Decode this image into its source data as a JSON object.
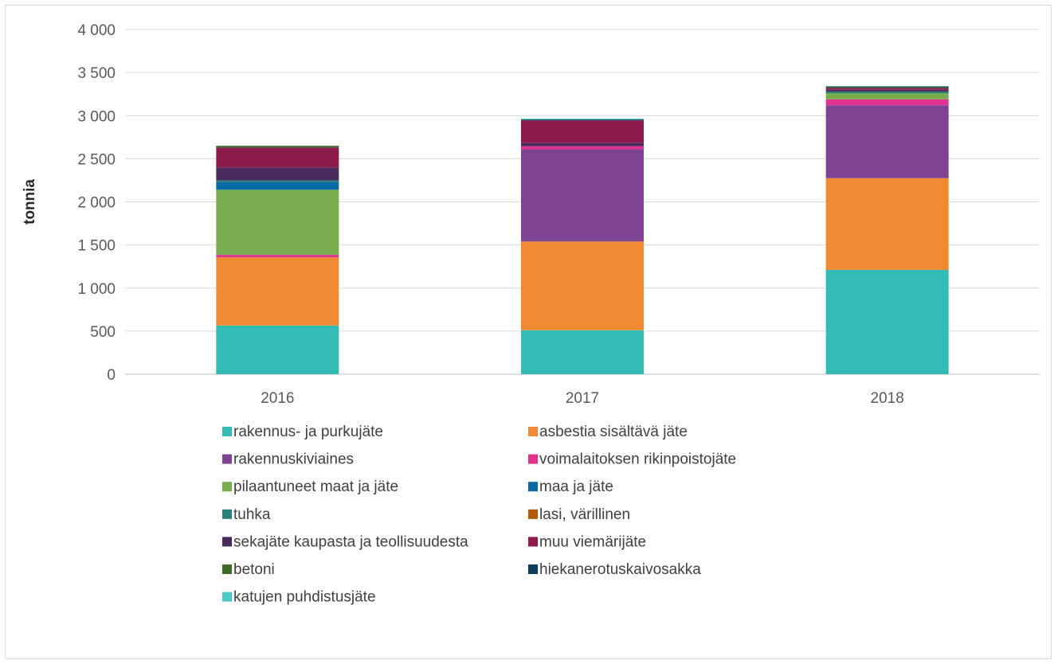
{
  "chart_data": {
    "type": "bar",
    "stacked": true,
    "categories": [
      "2016",
      "2017",
      "2018"
    ],
    "ylabel": "tonnia",
    "xlabel": "",
    "ylim": [
      0,
      4000
    ],
    "yticks": [
      0,
      500,
      1000,
      1500,
      2000,
      2500,
      3000,
      3500,
      4000
    ],
    "ytick_labels": [
      "0",
      "500",
      "1 000",
      "1 500",
      "2 000",
      "2 500",
      "3 000",
      "3 500",
      "4 000"
    ],
    "grid": true,
    "legend_placement": "bottom",
    "series": [
      {
        "name": "rakennus- ja purkujäte",
        "color": "#33bbb5",
        "values": [
          565,
          510,
          1210
        ]
      },
      {
        "name": "asbestia sisältävä jäte",
        "color": "#f08a32",
        "values": [
          790,
          1030,
          1065
        ]
      },
      {
        "name": "rakennuskiviaines",
        "color": "#7f4394",
        "values": [
          0,
          1070,
          845
        ]
      },
      {
        "name": "voimalaitoksen rikinpoistojäte",
        "color": "#e0338f",
        "values": [
          30,
          35,
          70
        ]
      },
      {
        "name": "pilaantuneet maat ja jäte",
        "color": "#77ad4e",
        "values": [
          755,
          0,
          70
        ]
      },
      {
        "name": "maa ja jäte",
        "color": "#0a6aa6",
        "values": [
          90,
          0,
          0
        ]
      },
      {
        "name": "tuhka",
        "color": "#2a7f7a",
        "values": [
          20,
          0,
          20
        ]
      },
      {
        "name": "lasi, värillinen",
        "color": "#b5580b",
        "values": [
          0,
          0,
          0
        ]
      },
      {
        "name": "sekajäte kaupasta ja teollisuudesta",
        "color": "#4a2b5e",
        "values": [
          150,
          40,
          20
        ]
      },
      {
        "name": "muu viemärijäte",
        "color": "#8c1a4d",
        "values": [
          230,
          260,
          20
        ]
      },
      {
        "name": "betoni",
        "color": "#3e6b2a",
        "values": [
          20,
          0,
          10
        ]
      },
      {
        "name": "hiekanerotuskaivosakka",
        "color": "#0d3b5a",
        "values": [
          0,
          10,
          10
        ]
      },
      {
        "name": "katujen puhdistusjäte",
        "color": "#4dc8c8",
        "values": [
          0,
          10,
          0
        ]
      }
    ]
  }
}
